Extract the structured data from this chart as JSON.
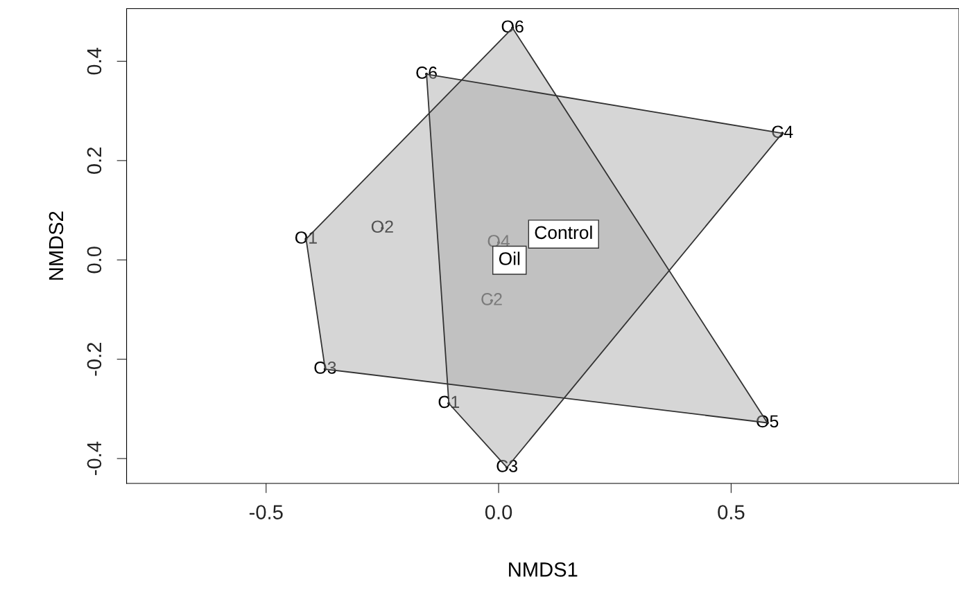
{
  "chart_data": {
    "type": "scatter",
    "xlabel": "NMDS1",
    "ylabel": "NMDS2",
    "xlim": [
      -0.8,
      0.99
    ],
    "ylim": [
      -0.45,
      0.506
    ],
    "xticks": [
      -0.5,
      {
        "value": 0,
        "label": "0.0"
      },
      0.5
    ],
    "yticks": [
      -0.4,
      -0.2,
      {
        "value": 0,
        "label": "0.0"
      },
      0.2,
      0.4
    ],
    "grid": false,
    "legend": false,
    "series": [
      {
        "color": "#000000",
        "marker": "circle",
        "x": [
          -0.414,
          -0.25,
          0.0,
          -0.373,
          0.578,
          0.03
        ],
        "values": [
          0.042,
          0.064,
          0.035,
          -0.22,
          -0.328,
          0.467
        ],
        "value_labels": [
          "O1",
          "O2",
          "O4",
          "O3",
          "O5",
          "O6"
        ]
      },
      {
        "color": "#000000",
        "marker": "circle",
        "x": [
          -0.107,
          -0.015,
          0.018,
          0.61,
          -0.155
        ],
        "values": [
          -0.289,
          -0.082,
          -0.418,
          0.255,
          0.374
        ],
        "value_labels": [
          "C1",
          "C2",
          "C3",
          "C4",
          "C6"
        ]
      },
      {
        "type": "area",
        "color": "#aaaaaa",
        "x": [
          -0.414,
          0.03,
          0.578,
          -0.373
        ],
        "values": [
          0.042,
          0.467,
          -0.328,
          -0.22
        ]
      },
      {
        "type": "area",
        "color": "#aaaaaa",
        "x": [
          -0.155,
          0.61,
          0.018,
          -0.107
        ],
        "values": [
          0.374,
          0.255,
          -0.418,
          -0.289
        ]
      }
    ],
    "annotations": [
      "Control",
      "Oil"
    ]
  }
}
